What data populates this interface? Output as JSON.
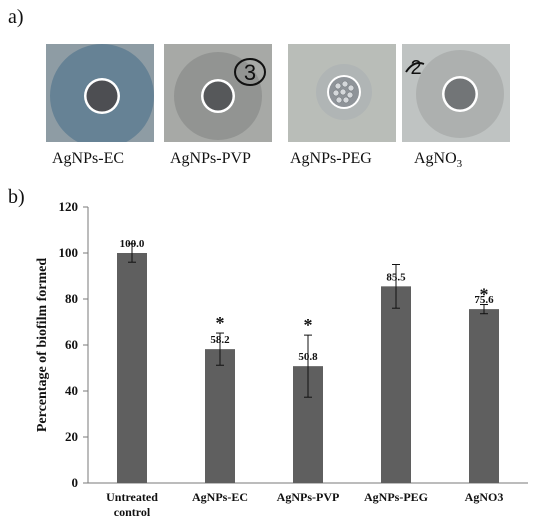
{
  "panel_a": {
    "label": "a)",
    "photos": [
      {
        "caption_main": "AgNPs-EC",
        "caption_sub": "",
        "mark": "",
        "bg_color": "#8e9ca4",
        "halo_color": "#5f7e93"
      },
      {
        "caption_main": "AgNPs-PVP",
        "caption_sub": "",
        "mark": "3",
        "bg_color": "#a7a9a6",
        "halo_color": "#8e918e"
      },
      {
        "caption_main": "AgNPs-PEG",
        "caption_sub": "",
        "mark": "",
        "bg_color": "#b9bdb8",
        "halo_color": "#aeb3b4"
      },
      {
        "caption_main": "AgNO",
        "caption_sub": "3",
        "mark": "2",
        "bg_color": "#bfc3c2",
        "halo_color": "#a9adac"
      }
    ]
  },
  "panel_b": {
    "label": "b)"
  },
  "chart_data": {
    "type": "bar",
    "categories": [
      [
        "Untreated",
        "control"
      ],
      [
        "AgNPs-EC"
      ],
      [
        "AgNPs-PVP"
      ],
      [
        "AgNPs-PEG"
      ],
      [
        "AgNO3"
      ]
    ],
    "values": [
      100.0,
      58.2,
      50.8,
      85.5,
      75.6
    ],
    "value_labels": [
      "100.0",
      "58.2",
      "50.8",
      "85.5",
      "75.6"
    ],
    "errors": [
      4.0,
      7.0,
      13.5,
      9.5,
      2.0
    ],
    "significance": [
      "",
      "*",
      "*",
      "",
      "*"
    ],
    "ylabel": "Percentage of biofilm formed",
    "ylim": [
      0,
      120
    ],
    "yticks": [
      0,
      20,
      40,
      60,
      80,
      100,
      120
    ],
    "bar_color": "#5f5f5f",
    "grid": false
  }
}
